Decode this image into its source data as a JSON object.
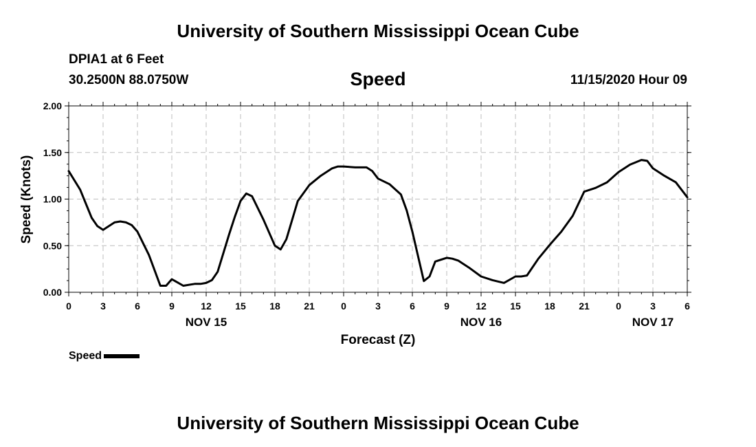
{
  "header": {
    "title": "University of Southern Mississippi Ocean Cube",
    "station": "DPIA1 at 6 Feet",
    "coordinates": "30.2500N 88.0750W",
    "parameter": "Speed",
    "datetime": "11/15/2020 Hour 09"
  },
  "footer": {
    "title": "University of Southern Mississippi Ocean Cube"
  },
  "legend": {
    "label": "Speed"
  },
  "chart_data": {
    "type": "line",
    "title": "Speed",
    "xlabel": "Forecast (Z)",
    "ylabel": "Speed (Knots)",
    "ylim": [
      0,
      2.0
    ],
    "yticks": [
      "0.00",
      "0.50",
      "1.00",
      "1.50",
      "2.00"
    ],
    "xlim": [
      0,
      54
    ],
    "xticks": [
      "0",
      "3",
      "6",
      "9",
      "12",
      "15",
      "18",
      "21",
      "0",
      "3",
      "6",
      "9",
      "12",
      "15",
      "18",
      "21",
      "0",
      "3",
      "6"
    ],
    "date_labels": [
      {
        "label": "NOV 15",
        "hour": 12
      },
      {
        "label": "NOV 16",
        "hour": 36
      },
      {
        "label": "NOV 17",
        "hour": 51
      }
    ],
    "grid": true,
    "series": [
      {
        "name": "Speed",
        "color": "#000000",
        "x": [
          0,
          1,
          2,
          2.5,
          3,
          4,
          4.5,
          5,
          5.5,
          6,
          7,
          8,
          8.5,
          9,
          10,
          11,
          11.5,
          12,
          12.5,
          13,
          14,
          14.5,
          15,
          15.5,
          16,
          17,
          18,
          18.5,
          19,
          20,
          21,
          22,
          23,
          23.5,
          24,
          25,
          26,
          26.5,
          27,
          28,
          29,
          29.5,
          30,
          31,
          31.5,
          32,
          33,
          33.5,
          34,
          35,
          36,
          37,
          38,
          39,
          39.5,
          40,
          41,
          42,
          43,
          44,
          45,
          46,
          47,
          48,
          49,
          50,
          50.5,
          51,
          52,
          53,
          54
        ],
        "values": [
          1.3,
          1.1,
          0.8,
          0.71,
          0.67,
          0.75,
          0.76,
          0.75,
          0.72,
          0.65,
          0.4,
          0.07,
          0.07,
          0.14,
          0.07,
          0.09,
          0.09,
          0.1,
          0.13,
          0.22,
          0.62,
          0.81,
          0.98,
          1.06,
          1.03,
          0.78,
          0.5,
          0.46,
          0.57,
          0.98,
          1.15,
          1.25,
          1.33,
          1.35,
          1.35,
          1.34,
          1.34,
          1.3,
          1.22,
          1.16,
          1.05,
          0.88,
          0.65,
          0.12,
          0.17,
          0.33,
          0.37,
          0.36,
          0.34,
          0.26,
          0.17,
          0.13,
          0.1,
          0.17,
          0.17,
          0.18,
          0.36,
          0.51,
          0.65,
          0.82,
          1.08,
          1.12,
          1.18,
          1.29,
          1.37,
          1.42,
          1.41,
          1.33,
          1.25,
          1.18,
          1.02
        ]
      }
    ]
  }
}
